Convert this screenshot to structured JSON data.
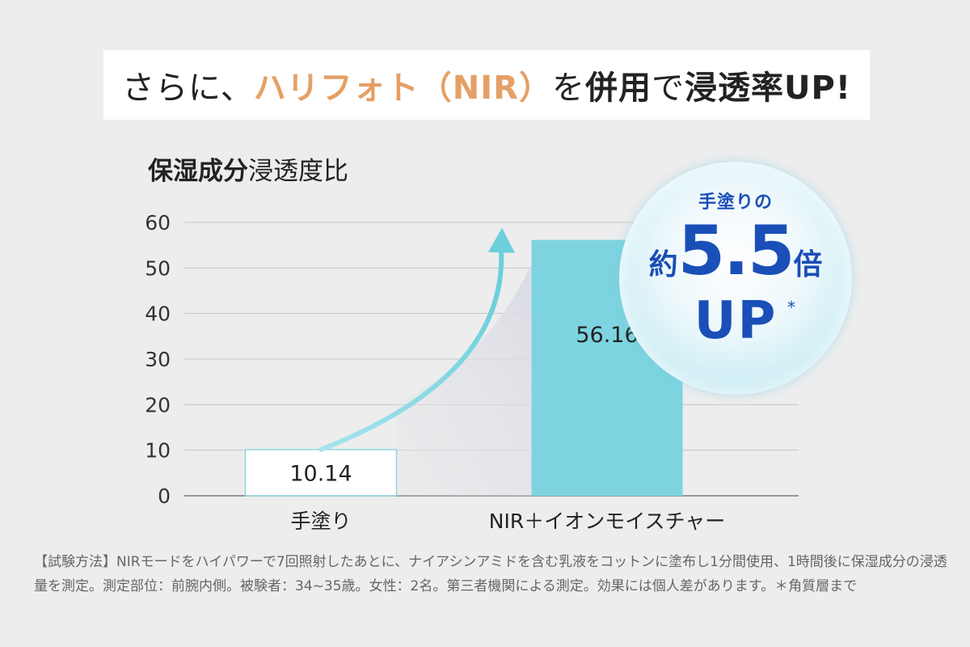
{
  "headline": {
    "part1": "さらに、",
    "accent": "ハリフォト（NIR）",
    "part2": "を",
    "bold1": "併用",
    "part3": "で",
    "bold2": "浸透率UP!"
  },
  "colors": {
    "accent_orange": "#e5a065",
    "bar_teal": "#7dd4e0",
    "bar_outline": "#8fd3de",
    "badge_blue": "#1a4fb8"
  },
  "chart_data": {
    "type": "bar",
    "title": "保湿成分浸透度比",
    "title_bold": "保湿成分",
    "title_regular": "浸透度比",
    "categories": [
      "手塗り",
      "NIR＋イオンモイスチャー"
    ],
    "values": [
      10.14,
      56.16
    ],
    "value_labels": [
      "10.14",
      "56.16"
    ],
    "ylim": [
      0,
      60
    ],
    "yticks": [
      "0",
      "10",
      "20",
      "30",
      "40",
      "50",
      "60"
    ],
    "grid": true,
    "xlabel": "",
    "ylabel": ""
  },
  "badge": {
    "top": "手塗りの",
    "prefix": "約",
    "number": "5.5",
    "suffix": "倍",
    "up": "UP",
    "asterisk": "*"
  },
  "footnote": "【試験方法】NIRモードをハイパワーで7回照射したあとに、ナイアシンアミドを含む乳液をコットンに塗布し1分間使用、1時間後に保湿成分の浸透量を測定。測定部位：前腕内側。被験者：34~35歳。女性：2名。第三者機関による測定。効果には個人差があります。＊角質層まで"
}
